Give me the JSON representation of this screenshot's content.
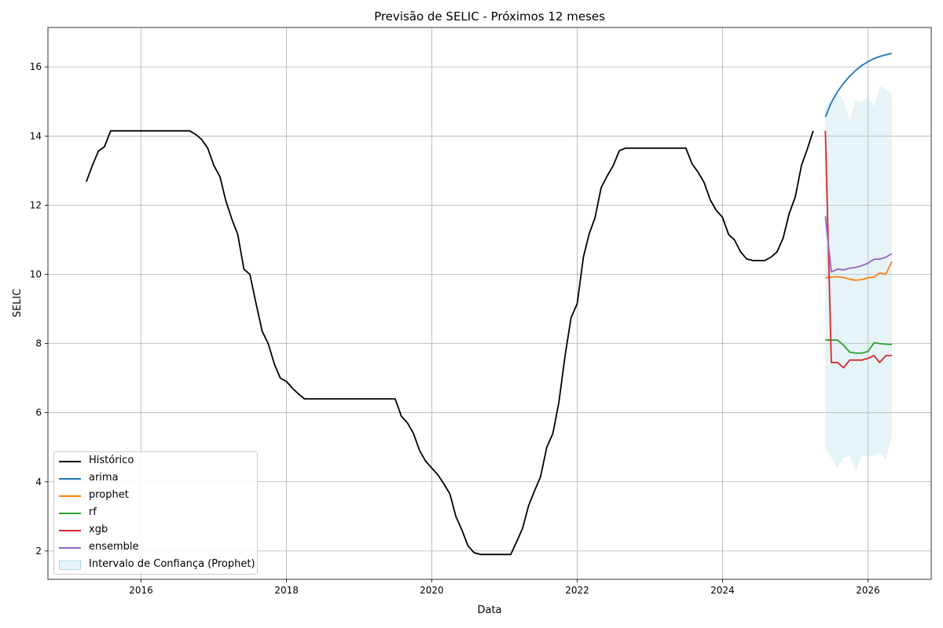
{
  "chart_data": {
    "type": "line",
    "title": "Previsão de SELIC - Próximos 12 meses",
    "xlabel": "Data",
    "ylabel": "SELIC",
    "xlim": [
      "2014-09-20",
      "2026-11-15"
    ],
    "ylim": [
      1.18,
      17.14
    ],
    "x_ticks": [
      "2016",
      "2018",
      "2020",
      "2022",
      "2024",
      "2026"
    ],
    "y_ticks": [
      2,
      4,
      6,
      8,
      10,
      12,
      14,
      16
    ],
    "grid": true,
    "legend_position": "lower-left",
    "series": [
      {
        "name": "Histórico",
        "color": "#000000",
        "x": [
          "2015-04-01",
          "2015-05-01",
          "2015-06-01",
          "2015-07-01",
          "2015-08-01",
          "2015-09-01",
          "2015-10-01",
          "2015-11-01",
          "2015-12-01",
          "2016-01-01",
          "2016-02-01",
          "2016-03-01",
          "2016-04-01",
          "2016-05-01",
          "2016-06-01",
          "2016-07-01",
          "2016-08-01",
          "2016-09-01",
          "2016-10-01",
          "2016-11-01",
          "2016-12-01",
          "2017-01-01",
          "2017-02-01",
          "2017-03-01",
          "2017-04-01",
          "2017-05-01",
          "2017-06-01",
          "2017-07-01",
          "2017-08-01",
          "2017-09-01",
          "2017-10-01",
          "2017-11-01",
          "2017-12-01",
          "2018-01-01",
          "2018-02-01",
          "2018-03-01",
          "2018-04-01",
          "2018-05-01",
          "2018-06-01",
          "2018-07-01",
          "2018-08-01",
          "2018-09-01",
          "2018-10-01",
          "2018-11-01",
          "2018-12-01",
          "2019-01-01",
          "2019-02-01",
          "2019-03-01",
          "2019-04-01",
          "2019-05-01",
          "2019-06-01",
          "2019-07-01",
          "2019-08-01",
          "2019-09-01",
          "2019-10-01",
          "2019-11-01",
          "2019-12-01",
          "2020-01-01",
          "2020-02-01",
          "2020-03-01",
          "2020-04-01",
          "2020-05-01",
          "2020-06-01",
          "2020-07-01",
          "2020-08-01",
          "2020-09-01",
          "2020-10-01",
          "2020-11-01",
          "2020-12-01",
          "2021-01-01",
          "2021-02-01",
          "2021-03-01",
          "2021-04-01",
          "2021-05-01",
          "2021-06-01",
          "2021-07-01",
          "2021-08-01",
          "2021-09-01",
          "2021-10-01",
          "2021-11-01",
          "2021-12-01",
          "2022-01-01",
          "2022-02-01",
          "2022-03-01",
          "2022-04-01",
          "2022-05-01",
          "2022-06-01",
          "2022-07-01",
          "2022-08-01",
          "2022-09-01",
          "2022-10-01",
          "2022-11-01",
          "2022-12-01",
          "2023-01-01",
          "2023-02-01",
          "2023-03-01",
          "2023-04-01",
          "2023-05-01",
          "2023-06-01",
          "2023-07-01",
          "2023-08-01",
          "2023-09-01",
          "2023-10-01",
          "2023-11-01",
          "2023-12-01",
          "2024-01-01",
          "2024-02-01",
          "2024-03-01",
          "2024-04-01",
          "2024-05-01",
          "2024-06-01",
          "2024-07-01",
          "2024-08-01",
          "2024-09-01",
          "2024-10-01",
          "2024-11-01",
          "2024-12-01",
          "2025-01-01",
          "2025-02-01",
          "2025-03-01",
          "2025-04-01"
        ],
        "y": [
          12.68,
          13.15,
          13.57,
          13.69,
          14.15,
          14.15,
          14.15,
          14.15,
          14.15,
          14.15,
          14.15,
          14.15,
          14.15,
          14.15,
          14.15,
          14.15,
          14.15,
          14.15,
          14.05,
          13.9,
          13.65,
          13.15,
          12.82,
          12.15,
          11.6,
          11.15,
          10.15,
          10.0,
          9.15,
          8.35,
          8.0,
          7.4,
          7.0,
          6.9,
          6.7,
          6.55,
          6.4,
          6.4,
          6.4,
          6.4,
          6.4,
          6.4,
          6.4,
          6.4,
          6.4,
          6.4,
          6.4,
          6.4,
          6.4,
          6.4,
          6.4,
          6.4,
          5.9,
          5.7,
          5.4,
          4.9,
          4.6,
          4.4,
          4.2,
          3.95,
          3.65,
          3.0,
          2.6,
          2.15,
          1.95,
          1.9,
          1.9,
          1.9,
          1.9,
          1.9,
          1.9,
          2.25,
          2.65,
          3.3,
          3.75,
          4.15,
          5.0,
          5.4,
          6.3,
          7.65,
          8.75,
          9.15,
          10.5,
          11.15,
          11.65,
          12.5,
          12.85,
          13.15,
          13.58,
          13.65,
          13.65,
          13.65,
          13.65,
          13.65,
          13.65,
          13.65,
          13.65,
          13.65,
          13.65,
          13.65,
          13.2,
          12.95,
          12.65,
          12.15,
          11.85,
          11.65,
          11.15,
          11.0,
          10.65,
          10.45,
          10.4,
          10.4,
          10.4,
          10.5,
          10.65,
          11.05,
          11.75,
          12.25,
          13.15,
          13.6,
          14.15
        ]
      },
      {
        "name": "arima",
        "color": "#1f77b4",
        "x": [
          "2025-06-01",
          "2025-07-01",
          "2025-08-01",
          "2025-09-01",
          "2025-10-01",
          "2025-11-01",
          "2025-12-01",
          "2026-01-01",
          "2026-02-01",
          "2026-03-01",
          "2026-04-01",
          "2026-05-01"
        ],
        "y": [
          14.55,
          14.97,
          15.28,
          15.53,
          15.73,
          15.9,
          16.04,
          16.15,
          16.24,
          16.3,
          16.35,
          16.39
        ]
      },
      {
        "name": "prophet",
        "color": "#ff7f0e",
        "x": [
          "2025-06-01",
          "2025-07-01",
          "2025-08-01",
          "2025-09-01",
          "2025-10-01",
          "2025-11-01",
          "2025-12-01",
          "2026-01-01",
          "2026-02-01",
          "2026-03-01",
          "2026-04-01",
          "2026-05-01"
        ],
        "y": [
          9.9,
          9.92,
          9.93,
          9.91,
          9.86,
          9.83,
          9.85,
          9.9,
          9.92,
          10.04,
          10.0,
          10.37
        ]
      },
      {
        "name": "rf",
        "color": "#2ca02c",
        "x": [
          "2025-06-01",
          "2025-07-01",
          "2025-08-01",
          "2025-09-01",
          "2025-10-01",
          "2025-11-01",
          "2025-12-01",
          "2026-01-01",
          "2026-02-01",
          "2026-03-01",
          "2026-04-01",
          "2026-05-01"
        ],
        "y": [
          8.1,
          8.1,
          8.1,
          7.95,
          7.75,
          7.72,
          7.72,
          7.77,
          8.02,
          8.0,
          7.98,
          7.97
        ]
      },
      {
        "name": "xgb",
        "color": "#d62728",
        "x": [
          "2025-06-01",
          "2025-07-01",
          "2025-08-01",
          "2025-09-01",
          "2025-10-01",
          "2025-11-01",
          "2025-12-01",
          "2026-01-01",
          "2026-02-01",
          "2026-03-01",
          "2026-04-01",
          "2026-05-01"
        ],
        "y": [
          14.15,
          7.45,
          7.45,
          7.3,
          7.52,
          7.52,
          7.52,
          7.57,
          7.65,
          7.45,
          7.65,
          7.65
        ]
      },
      {
        "name": "ensemble",
        "color": "#9467bd",
        "x": [
          "2025-06-01",
          "2025-07-01",
          "2025-08-01",
          "2025-09-01",
          "2025-10-01",
          "2025-11-01",
          "2025-12-01",
          "2026-01-01",
          "2026-02-01",
          "2026-03-01",
          "2026-04-01",
          "2026-05-01"
        ],
        "y": [
          11.68,
          10.07,
          10.15,
          10.13,
          10.18,
          10.2,
          10.25,
          10.32,
          10.44,
          10.44,
          10.5,
          10.6
        ]
      }
    ],
    "band": {
      "name": "Intervalo de Confiança (Prophet)",
      "color": "#add8e6",
      "x": [
        "2025-06-01",
        "2025-07-01",
        "2025-08-01",
        "2025-09-01",
        "2025-10-01",
        "2025-11-01",
        "2025-12-01",
        "2026-01-01",
        "2026-02-01",
        "2026-03-01",
        "2026-04-01",
        "2026-05-01"
      ],
      "lower": [
        4.95,
        4.7,
        4.4,
        4.7,
        4.75,
        4.3,
        4.75,
        4.75,
        4.75,
        4.85,
        4.65,
        5.3
      ],
      "upper": [
        14.9,
        15.0,
        15.3,
        15.0,
        14.45,
        15.05,
        14.98,
        15.15,
        14.85,
        15.45,
        15.35,
        15.2
      ]
    }
  }
}
